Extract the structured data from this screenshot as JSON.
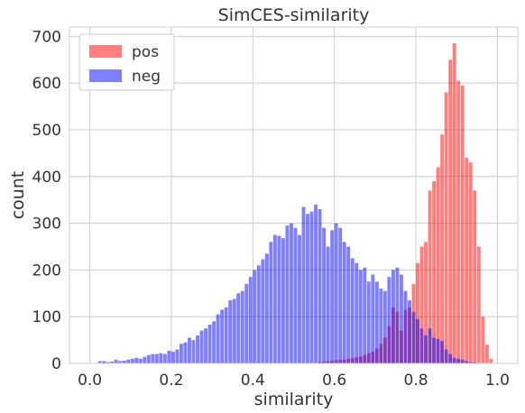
{
  "chart_data": {
    "type": "histogram",
    "title": "SimCES-similarity",
    "xlabel": "similarity",
    "ylabel": "count",
    "xlim": [
      -0.05,
      1.05
    ],
    "ylim": [
      0,
      720
    ],
    "xticks": [
      0.0,
      0.2,
      0.4,
      0.6,
      0.8,
      1.0
    ],
    "xtick_labels": [
      "0.0",
      "0.2",
      "0.4",
      "0.6",
      "0.8",
      "1.0"
    ],
    "yticks": [
      0,
      100,
      200,
      300,
      400,
      500,
      600,
      700
    ],
    "ytick_labels": [
      "0",
      "100",
      "200",
      "300",
      "400",
      "500",
      "600",
      "700"
    ],
    "grid": true,
    "legend_position": "top-left",
    "bin_width": 0.01,
    "series": [
      {
        "name": "pos",
        "color": "#ff8080",
        "bins": [
          [
            0.56,
            3
          ],
          [
            0.57,
            4
          ],
          [
            0.58,
            5
          ],
          [
            0.59,
            5
          ],
          [
            0.6,
            7
          ],
          [
            0.61,
            8
          ],
          [
            0.62,
            8
          ],
          [
            0.63,
            10
          ],
          [
            0.64,
            11
          ],
          [
            0.65,
            13
          ],
          [
            0.66,
            15
          ],
          [
            0.67,
            18
          ],
          [
            0.68,
            22
          ],
          [
            0.69,
            25
          ],
          [
            0.7,
            32
          ],
          [
            0.71,
            42
          ],
          [
            0.72,
            55
          ],
          [
            0.73,
            80
          ],
          [
            0.74,
            120
          ],
          [
            0.75,
            110
          ],
          [
            0.76,
            70
          ],
          [
            0.77,
            115
          ],
          [
            0.78,
            120
          ],
          [
            0.79,
            170
          ],
          [
            0.8,
            215
          ],
          [
            0.81,
            250
          ],
          [
            0.82,
            260
          ],
          [
            0.83,
            370
          ],
          [
            0.84,
            390
          ],
          [
            0.85,
            420
          ],
          [
            0.86,
            490
          ],
          [
            0.87,
            580
          ],
          [
            0.88,
            650
          ],
          [
            0.89,
            685
          ],
          [
            0.9,
            605
          ],
          [
            0.91,
            595
          ],
          [
            0.92,
            440
          ],
          [
            0.93,
            430
          ],
          [
            0.94,
            370
          ],
          [
            0.95,
            250
          ],
          [
            0.96,
            100
          ],
          [
            0.97,
            40
          ],
          [
            0.98,
            10
          ]
        ]
      },
      {
        "name": "neg",
        "color": "#8080ff",
        "bins": [
          [
            0.02,
            5
          ],
          [
            0.03,
            5
          ],
          [
            0.04,
            3
          ],
          [
            0.05,
            4
          ],
          [
            0.06,
            8
          ],
          [
            0.07,
            5
          ],
          [
            0.08,
            6
          ],
          [
            0.09,
            8
          ],
          [
            0.1,
            10
          ],
          [
            0.11,
            12
          ],
          [
            0.12,
            10
          ],
          [
            0.13,
            14
          ],
          [
            0.14,
            18
          ],
          [
            0.15,
            20
          ],
          [
            0.16,
            20
          ],
          [
            0.17,
            22
          ],
          [
            0.18,
            20
          ],
          [
            0.19,
            27
          ],
          [
            0.2,
            25
          ],
          [
            0.21,
            30
          ],
          [
            0.22,
            42
          ],
          [
            0.23,
            45
          ],
          [
            0.24,
            55
          ],
          [
            0.25,
            50
          ],
          [
            0.26,
            60
          ],
          [
            0.27,
            70
          ],
          [
            0.28,
            75
          ],
          [
            0.29,
            83
          ],
          [
            0.3,
            90
          ],
          [
            0.31,
            105
          ],
          [
            0.32,
            115
          ],
          [
            0.33,
            120
          ],
          [
            0.34,
            135
          ],
          [
            0.35,
            138
          ],
          [
            0.36,
            150
          ],
          [
            0.37,
            155
          ],
          [
            0.38,
            170
          ],
          [
            0.39,
            185
          ],
          [
            0.4,
            200
          ],
          [
            0.41,
            210
          ],
          [
            0.42,
            223
          ],
          [
            0.43,
            235
          ],
          [
            0.44,
            260
          ],
          [
            0.45,
            275
          ],
          [
            0.46,
            273
          ],
          [
            0.47,
            268
          ],
          [
            0.48,
            295
          ],
          [
            0.49,
            300
          ],
          [
            0.5,
            290
          ],
          [
            0.51,
            275
          ],
          [
            0.52,
            335
          ],
          [
            0.53,
            320
          ],
          [
            0.54,
            325
          ],
          [
            0.55,
            340
          ],
          [
            0.56,
            330
          ],
          [
            0.57,
            290
          ],
          [
            0.58,
            250
          ],
          [
            0.59,
            285
          ],
          [
            0.6,
            300
          ],
          [
            0.61,
            290
          ],
          [
            0.62,
            260
          ],
          [
            0.63,
            250
          ],
          [
            0.64,
            225
          ],
          [
            0.65,
            215
          ],
          [
            0.66,
            200
          ],
          [
            0.67,
            205
          ],
          [
            0.68,
            175
          ],
          [
            0.69,
            190
          ],
          [
            0.7,
            175
          ],
          [
            0.71,
            160
          ],
          [
            0.72,
            155
          ],
          [
            0.73,
            185
          ],
          [
            0.74,
            200
          ],
          [
            0.75,
            205
          ],
          [
            0.76,
            190
          ],
          [
            0.77,
            155
          ],
          [
            0.78,
            135
          ],
          [
            0.79,
            110
          ],
          [
            0.8,
            95
          ],
          [
            0.81,
            75
          ],
          [
            0.82,
            60
          ],
          [
            0.83,
            75
          ],
          [
            0.84,
            55
          ],
          [
            0.85,
            52
          ],
          [
            0.86,
            48
          ],
          [
            0.87,
            30
          ],
          [
            0.88,
            20
          ],
          [
            0.89,
            12
          ],
          [
            0.9,
            10
          ],
          [
            0.91,
            8
          ],
          [
            0.92,
            5
          ],
          [
            0.93,
            3
          ],
          [
            0.94,
            2
          ]
        ]
      }
    ]
  }
}
